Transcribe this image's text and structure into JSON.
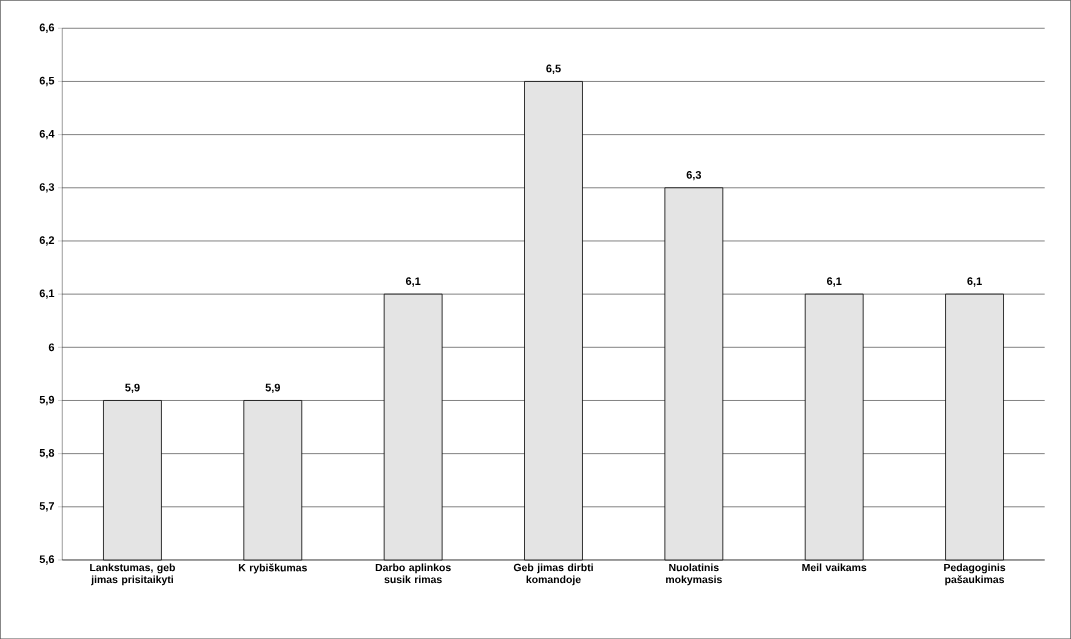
{
  "chart_data": {
    "type": "bar",
    "categories": [
      "Lankstumas, geb jimas prisitaikyti",
      "K rybiškumas",
      "Darbo aplinkos susik rimas",
      "Geb jimas dirbti komandoje",
      "Nuolatinis mokymasis",
      "Meil  vaikams",
      "Pedagoginis pašaukimas"
    ],
    "values": [
      5.9,
      5.9,
      6.1,
      6.5,
      6.3,
      6.1,
      6.1
    ],
    "value_labels": [
      "5,9",
      "5,9",
      "6,1",
      "6,5",
      "6,3",
      "6,1",
      "6,1"
    ],
    "color": "#e4e4e4",
    "ylim": [
      5.6,
      6.6
    ],
    "yticks": [
      {
        "value": 5.6,
        "label": "5,6"
      },
      {
        "value": 5.7,
        "label": "5,7"
      },
      {
        "value": 5.8,
        "label": "5,8"
      },
      {
        "value": 5.9,
        "label": "5,9"
      },
      {
        "value": 6,
        "label": "6"
      },
      {
        "value": 6.1,
        "label": "6,1"
      },
      {
        "value": 6.2,
        "label": "6,2"
      },
      {
        "value": 6.3,
        "label": "6,3"
      },
      {
        "value": 6.4,
        "label": "6,4"
      },
      {
        "value": 6.5,
        "label": "6,5"
      },
      {
        "value": 6.6,
        "label": "6,6"
      }
    ],
    "grid": "y"
  }
}
